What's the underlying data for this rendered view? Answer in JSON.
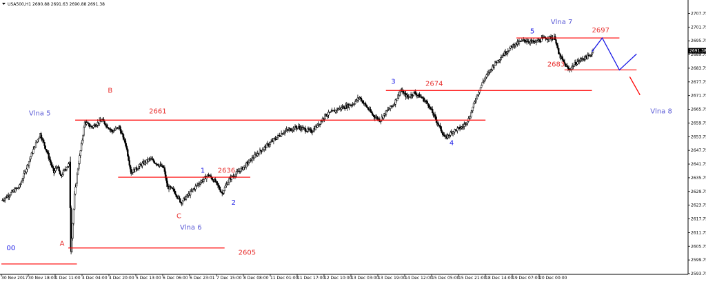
{
  "header": {
    "symbol_line": "USA500,H1  2690.88 2691.63 2690.88 2691.38"
  },
  "colors": {
    "candle": "#000000",
    "level_line": "#ff0000",
    "price_label": "#e8312f",
    "wave_label": "#5a5ad6",
    "forecast_up": "#1a1ae6",
    "forecast_down": "#ff0000",
    "current_price_bg": "#000000",
    "current_price_text": "#ffffff"
  },
  "chart_data": {
    "type": "candlestick",
    "title": "",
    "ylim": [
      2593.75,
      2710
    ],
    "y_ticks": [
      "2707.75",
      "2701.75",
      "2695.75",
      "2689.75",
      "2683.75",
      "2677.75",
      "2671.75",
      "2665.75",
      "2659.75",
      "2653.75",
      "2647.75",
      "2641.75",
      "2635.75",
      "2629.75",
      "2623.75",
      "2617.75",
      "2611.75",
      "2605.75",
      "2599.75",
      "2593.75"
    ],
    "x_ticks": [
      "30 Nov 2017",
      "30 Nov 18:00",
      "1 Dec 11:00",
      "4 Dec 04:00",
      "4 Dec 20:00",
      "5 Dec 13:00",
      "6 Dec 06:00",
      "6 Dec 23:01",
      "7 Dec 15:00",
      "8 Dec 08:00",
      "11 Dec 01:00",
      "11 Dec 17:00",
      "12 Dec 10:00",
      "13 Dec 03:00",
      "13 Dec 19:00",
      "14 Dec 12:00",
      "15 Dec 05:00",
      "15 Dec 21:00",
      "18 Dec 14:00",
      "19 Dec 07:00",
      "20 Dec 00:00"
    ],
    "current_price": "2691.38",
    "price_path": [
      [
        0,
        2626
      ],
      [
        5,
        2632
      ],
      [
        9,
        2648
      ],
      [
        11,
        2655
      ],
      [
        13,
        2647
      ],
      [
        15,
        2638
      ],
      [
        16,
        2641
      ],
      [
        17,
        2636
      ],
      [
        18,
        2639
      ],
      [
        19.5,
        2642
      ],
      [
        20,
        2604
      ],
      [
        21,
        2628
      ],
      [
        22,
        2640
      ],
      [
        24,
        2660
      ],
      [
        26,
        2658
      ],
      [
        29,
        2661
      ],
      [
        32,
        2656
      ],
      [
        34,
        2658
      ],
      [
        36,
        2650
      ],
      [
        37.5,
        2638
      ],
      [
        40,
        2641
      ],
      [
        43,
        2644
      ],
      [
        45,
        2642
      ],
      [
        47,
        2640
      ],
      [
        48,
        2632
      ],
      [
        50,
        2630
      ],
      [
        52,
        2625
      ],
      [
        54,
        2628
      ],
      [
        57,
        2633
      ],
      [
        60,
        2637
      ],
      [
        62,
        2634
      ],
      [
        64,
        2629
      ],
      [
        66,
        2635
      ],
      [
        70,
        2640
      ],
      [
        74,
        2646
      ],
      [
        78,
        2651
      ],
      [
        82,
        2656
      ],
      [
        86,
        2658
      ],
      [
        90,
        2656
      ],
      [
        92,
        2659
      ],
      [
        94,
        2663
      ],
      [
        98,
        2666
      ],
      [
        102,
        2668
      ],
      [
        104,
        2671
      ],
      [
        106,
        2667
      ],
      [
        108,
        2663
      ],
      [
        110,
        2661
      ],
      [
        112,
        2665
      ],
      [
        114,
        2668
      ],
      [
        116,
        2674
      ],
      [
        118,
        2671
      ],
      [
        120,
        2673
      ],
      [
        122,
        2671
      ],
      [
        124,
        2668
      ],
      [
        126,
        2662
      ],
      [
        128,
        2656
      ],
      [
        129,
        2653
      ],
      [
        131,
        2656
      ],
      [
        134,
        2658
      ],
      [
        136,
        2662
      ],
      [
        138,
        2671
      ],
      [
        140,
        2678
      ],
      [
        143,
        2685
      ],
      [
        146,
        2690
      ],
      [
        149,
        2694
      ],
      [
        152,
        2696
      ],
      [
        155,
        2695
      ],
      [
        158,
        2697
      ],
      [
        161,
        2697
      ],
      [
        162,
        2690
      ],
      [
        164,
        2685
      ],
      [
        165,
        2683
      ],
      [
        167,
        2686
      ],
      [
        169,
        2688
      ],
      [
        171,
        2689
      ],
      [
        172,
        2691.38
      ]
    ],
    "levels": [
      {
        "label": "2661",
        "price": 2661,
        "x_start": 21.5,
        "x_end": 141
      },
      {
        "label": "2636",
        "price": 2636,
        "x_start": 34,
        "x_end": 72.5
      },
      {
        "label": "2605",
        "price": 2605,
        "x_start": 19.5,
        "x_end": 65
      },
      {
        "label": "",
        "price": 2598,
        "x_start": 0,
        "x_end": 22
      },
      {
        "label": "2674",
        "price": 2674,
        "x_start": 112,
        "x_end": 172
      },
      {
        "label": "2697",
        "price": 2697,
        "x_start": 150,
        "x_end": 180
      },
      {
        "label": "2683",
        "price": 2683,
        "x_start": 164,
        "x_end": 185
      }
    ],
    "wave_labels": [
      {
        "text": "Vlna 5",
        "x": 8,
        "price": 2663,
        "color": "wave"
      },
      {
        "text": "B",
        "x": 31,
        "price": 2673,
        "color": "price"
      },
      {
        "text": "2661",
        "x": 43,
        "price": 2664,
        "color": "price"
      },
      {
        "text": "1",
        "x": 58,
        "price": 2638,
        "color": "wave_dark"
      },
      {
        "text": "2636",
        "x": 63,
        "price": 2638,
        "color": "price"
      },
      {
        "text": "2",
        "x": 67,
        "price": 2624,
        "color": "wave_dark"
      },
      {
        "text": "C",
        "x": 51,
        "price": 2618,
        "color": "price"
      },
      {
        "text": "Vlna 6",
        "x": 52,
        "price": 2613,
        "color": "wave"
      },
      {
        "text": "A",
        "x": 17,
        "price": 2606,
        "color": "price"
      },
      {
        "text": "2605",
        "x": 69,
        "price": 2602,
        "color": "price"
      },
      {
        "text": "00",
        "x": 1.5,
        "price": 2604,
        "color": "wave_dark"
      },
      {
        "text": "3",
        "x": 113.5,
        "price": 2677,
        "color": "wave_dark"
      },
      {
        "text": "2674",
        "x": 123.5,
        "price": 2676,
        "color": "price"
      },
      {
        "text": "4",
        "x": 130.5,
        "price": 2650,
        "color": "wave_dark"
      },
      {
        "text": "5",
        "x": 154,
        "price": 2699,
        "color": "wave_dark"
      },
      {
        "text": "Vlna 7",
        "x": 160,
        "price": 2703,
        "color": "wave"
      },
      {
        "text": "2697",
        "x": 172,
        "price": 2699.5,
        "color": "price"
      },
      {
        "text": "2683",
        "x": 159,
        "price": 2684.5,
        "color": "price"
      },
      {
        "text": "Vlna 8",
        "x": 189,
        "price": 2664,
        "color": "wave"
      }
    ],
    "forecast": {
      "up_path": [
        [
          172,
          2691
        ],
        [
          175,
          2697
        ],
        [
          180,
          2683
        ],
        [
          185,
          2690
        ]
      ],
      "down_path": [
        [
          183,
          2680
        ],
        [
          186,
          2672
        ]
      ]
    }
  }
}
